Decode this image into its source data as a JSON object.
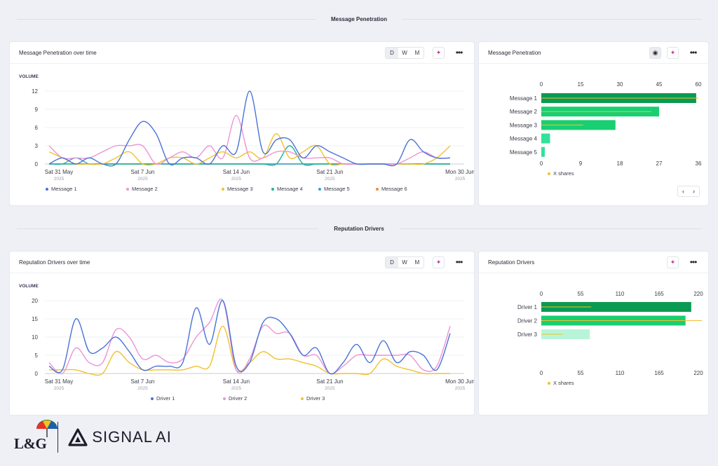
{
  "sections": {
    "penetration_title": "Message Penetration",
    "drivers_title": "Reputation Drivers"
  },
  "penetration_time": {
    "title": "Message Penetration over time",
    "toggle": [
      "D",
      "W",
      "M"
    ],
    "active_toggle": "D",
    "vol_label": "VOLUME",
    "icons": {
      "sparkle": "sparkle-icon",
      "more": "more-icon"
    }
  },
  "penetration_bar": {
    "title": "Message Penetration",
    "legend_label": "X shares",
    "icons": {
      "hide": "eye-slash-icon",
      "sparkle": "sparkle-icon",
      "more": "more-icon"
    }
  },
  "drivers_time": {
    "title": "Reputation Drivers over time",
    "toggle": [
      "D",
      "W",
      "M"
    ],
    "active_toggle": "D",
    "vol_label": "VOLUME"
  },
  "drivers_bar": {
    "title": "Reputation Drivers",
    "legend_label": "X shares"
  },
  "footer": {
    "brand1": "L&G",
    "brand2": "SIGNAL",
    "brand2_suffix": "AI"
  },
  "colors": {
    "blue": "#4a72d6",
    "pink": "#ec94d6",
    "yellow": "#f2c12e",
    "teal": "#21b39b",
    "cyan": "#2aa7d6",
    "orange": "#ee8f2a",
    "green_dark": "#0a9a52",
    "green_mid": "#18cf72",
    "green_light": "#34e09a",
    "green_pale": "#b8f5d8"
  },
  "chart_data": [
    {
      "type": "line",
      "id": "penetration_over_time",
      "ylabel": "VOLUME",
      "ylim": [
        0,
        12
      ],
      "yticks": [
        0,
        3,
        6,
        9,
        12
      ],
      "x_ticks": [
        {
          "label": "Sat 31 May",
          "sub": "2025",
          "i": 0
        },
        {
          "label": "Sat 7 Jun",
          "sub": "2025",
          "i": 7
        },
        {
          "label": "Sat 14 Jun",
          "sub": "2025",
          "i": 14
        },
        {
          "label": "Sat 21 Jun",
          "sub": "2025",
          "i": 21
        },
        {
          "label": "Mon 30 Jun",
          "sub": "2025",
          "i": 30
        }
      ],
      "series": [
        {
          "name": "Message 1",
          "color": "#4a72d6",
          "values": [
            0,
            1,
            0,
            1,
            0,
            0,
            4,
            7,
            5,
            0,
            1,
            1,
            0,
            3,
            2,
            12,
            2,
            4,
            4,
            1,
            3,
            2,
            1,
            0,
            0,
            0,
            0,
            4,
            2,
            1,
            1
          ]
        },
        {
          "name": "Message 2",
          "color": "#ec94d6",
          "values": [
            3,
            1,
            1,
            1,
            2,
            3,
            3,
            3,
            0,
            1,
            2,
            1,
            3,
            1,
            8,
            1,
            1,
            2,
            2,
            1,
            1,
            1,
            0,
            0,
            0,
            0,
            0,
            1,
            2,
            1,
            1
          ]
        },
        {
          "name": "Message 3",
          "color": "#f2c12e",
          "values": [
            2,
            1,
            0,
            0,
            0,
            1,
            2,
            0,
            0,
            1,
            1,
            0,
            1,
            2,
            1,
            2,
            1,
            5,
            1,
            2,
            3,
            0,
            0,
            0,
            0,
            0,
            0,
            0,
            0,
            1,
            3
          ]
        },
        {
          "name": "Message 4",
          "color": "#21b39b",
          "values": [
            0,
            0,
            0,
            0,
            0,
            0,
            0,
            0,
            0,
            0,
            0,
            0,
            0,
            0,
            0,
            0,
            0,
            0,
            3,
            0,
            0,
            0,
            0,
            0,
            0,
            0,
            0,
            0,
            0,
            0,
            0
          ]
        },
        {
          "name": "Message 5",
          "color": "#2aa7d6",
          "values": [
            0,
            0,
            1,
            0,
            0,
            0,
            0,
            0,
            0,
            0,
            0,
            0,
            0,
            0,
            0,
            0,
            0,
            0,
            0,
            0,
            0,
            0,
            0,
            0,
            0,
            0,
            0,
            0,
            0,
            0,
            0
          ]
        },
        {
          "name": "Message 6",
          "color": "#ee8f2a",
          "values": [
            0,
            0,
            0,
            0,
            0,
            0,
            0,
            0,
            0,
            0,
            0,
            0,
            0,
            0,
            0,
            0,
            0,
            0,
            0,
            0,
            0,
            0,
            0,
            0,
            0,
            0,
            0,
            0,
            0,
            0,
            0
          ]
        }
      ]
    },
    {
      "type": "bar",
      "id": "penetration_bar",
      "orientation": "horizontal",
      "categories": [
        "Message 1",
        "Message 2",
        "Message 3",
        "Message 4",
        "Message 5"
      ],
      "values": [
        35.5,
        27,
        17,
        2,
        0.8
      ],
      "x_shares": [
        60,
        42,
        16,
        0,
        0
      ],
      "top_axis": [
        0,
        15,
        30,
        45,
        60
      ],
      "bottom_axis": [
        0,
        9,
        18,
        27,
        36
      ],
      "bar_colors": [
        "#0a9a52",
        "#18cf72",
        "#18cf72",
        "#34e09a",
        "#34e09a"
      ],
      "legend": [
        "X shares"
      ]
    },
    {
      "type": "line",
      "id": "drivers_over_time",
      "ylabel": "VOLUME",
      "ylim": [
        0,
        20
      ],
      "yticks": [
        0,
        5,
        10,
        15,
        20
      ],
      "x_ticks": [
        {
          "label": "Sat 31 May",
          "sub": "2025",
          "i": 0
        },
        {
          "label": "Sat 7 Jun",
          "sub": "2025",
          "i": 7
        },
        {
          "label": "Sat 14 Jun",
          "sub": "2025",
          "i": 14
        },
        {
          "label": "Sat 21 Jun",
          "sub": "2025",
          "i": 21
        },
        {
          "label": "Mon 30 Jun",
          "sub": "2025",
          "i": 30
        }
      ],
      "series": [
        {
          "name": "Driver 1",
          "color": "#4a72d6",
          "values": [
            2,
            1,
            15,
            6,
            7,
            10,
            6,
            1,
            2,
            2,
            3,
            18,
            8,
            20,
            2,
            3,
            14,
            15,
            11,
            5,
            7,
            0,
            3,
            8,
            3,
            9,
            3,
            6,
            5,
            1,
            11
          ]
        },
        {
          "name": "Driver 2",
          "color": "#ec94d6",
          "values": [
            3,
            0,
            7,
            3,
            3,
            12,
            10,
            4,
            5,
            3,
            4,
            10,
            14,
            20,
            1,
            4,
            13,
            11,
            11,
            5,
            5,
            0,
            2,
            5,
            5,
            5,
            5,
            5,
            1,
            2,
            13
          ]
        },
        {
          "name": "Driver 3",
          "color": "#f2c12e",
          "values": [
            1,
            1,
            1,
            0,
            0,
            6,
            3,
            1,
            1,
            1,
            1,
            2,
            2,
            13,
            1,
            3,
            6,
            4,
            4,
            3,
            2,
            0,
            0,
            0,
            0,
            4,
            2,
            1,
            0,
            0,
            0
          ]
        }
      ]
    },
    {
      "type": "bar",
      "id": "drivers_bar",
      "orientation": "horizontal",
      "categories": [
        "Driver 1",
        "Driver 2",
        "Driver 3"
      ],
      "values": [
        210,
        202,
        68
      ],
      "x_shares": [
        70,
        225,
        30
      ],
      "top_axis": [
        0,
        55,
        110,
        165,
        220
      ],
      "bottom_axis": [
        0,
        55,
        110,
        165,
        220
      ],
      "bar_colors": [
        "#0a9a52",
        "#18cf72",
        "#b8f5d8"
      ],
      "legend": [
        "X shares"
      ]
    }
  ]
}
